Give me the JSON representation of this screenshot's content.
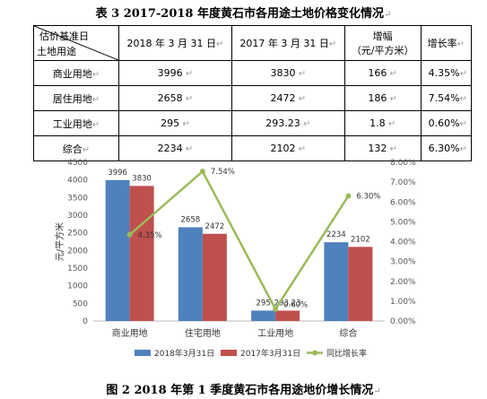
{
  "table": {
    "title": "表 3   2017-2018 年度黄石市各用途土地价格变化情况",
    "corner_top": "估价基准日",
    "corner_bottom": "土地用途",
    "headers": [
      "2018 年 3 月 31 日",
      "2017 年 3 月 31 日",
      "增幅",
      "（元/平方米）",
      "增长率"
    ],
    "rows": [
      {
        "use": "商业用地",
        "y2018": "3996",
        "y2017": "3830",
        "increase": "166",
        "rate": "4.35%"
      },
      {
        "use": "居住用地",
        "y2018": "2658",
        "y2017": "2472",
        "increase": "186",
        "rate": "7.54%"
      },
      {
        "use": "工业用地",
        "y2018": "295",
        "y2017": "293.23",
        "increase": "1.8",
        "rate": "0.60%"
      },
      {
        "use": "综合",
        "y2018": "2234",
        "y2017": "2102",
        "increase": "132",
        "rate": "6.30%"
      }
    ]
  },
  "chart_data": {
    "type": "bar",
    "categories": [
      "商业用地",
      "住宅用地",
      "工业用地",
      "综合"
    ],
    "series": [
      {
        "name": "2018年3月31日",
        "type": "bar",
        "axis": "left",
        "color": "#4F81BD",
        "values": [
          3996,
          2658,
          295,
          2234
        ],
        "labels": [
          "3996",
          "2658",
          "295",
          "2234"
        ]
      },
      {
        "name": "2017年3月31日",
        "type": "bar",
        "axis": "left",
        "color": "#C0504D",
        "values": [
          3830,
          2472,
          293.23,
          2102
        ],
        "labels": [
          "3830",
          "2472",
          "293.23",
          "2102"
        ]
      },
      {
        "name": "同比增长率",
        "type": "line",
        "axis": "right",
        "color": "#9BBB59",
        "values": [
          4.35,
          7.54,
          0.6,
          6.3
        ],
        "labels": [
          "4.35%",
          "7.54%",
          "0.60%",
          "6.30%"
        ]
      }
    ],
    "ylabel": "元/平方米",
    "ylim": [
      0,
      4500
    ],
    "y2lim": [
      0,
      8
    ],
    "yticks": [
      "0",
      "500",
      "1000",
      "1500",
      "2000",
      "2500",
      "3000",
      "3500",
      "4000",
      "4500"
    ],
    "y2ticks": [
      "0.00%",
      "1.00%",
      "2.00%",
      "3.00%",
      "4.00%",
      "5.00%",
      "6.00%",
      "7.00%",
      "8.00%"
    ],
    "legend_position": "bottom",
    "grid": false
  },
  "figure_caption": "图 2   2018 年第 1 季度黄石市各用途地价增长情况"
}
